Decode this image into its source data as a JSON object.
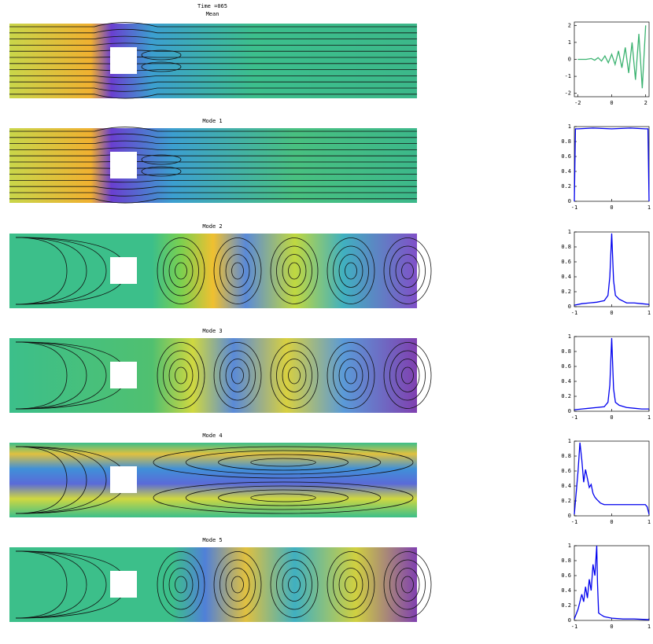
{
  "header": {
    "time": "Time =065"
  },
  "field_titles": [
    "Mean",
    "Mode 1",
    "Mode 2",
    "Mode 3",
    "Mode 4",
    "Mode 5"
  ],
  "chart_data": [
    {
      "type": "line",
      "xlim": [
        -2.2,
        2.2
      ],
      "xticks": [
        -2,
        0,
        2
      ],
      "ylim": [
        -2.2,
        2.2
      ],
      "yticks": [
        -2,
        -1,
        0,
        1,
        2
      ],
      "series": [
        {
          "color": "#3cb371",
          "x": [
            -2,
            -1.5,
            -1.2,
            -1,
            -0.8,
            -0.6,
            -0.4,
            -0.2,
            0,
            0.2,
            0.4,
            0.6,
            0.8,
            1,
            1.2,
            1.4,
            1.6,
            1.8,
            2
          ],
          "values": [
            0,
            0,
            0.05,
            -0.05,
            0.1,
            -0.1,
            0.2,
            -0.2,
            0.3,
            -0.3,
            0.5,
            -0.5,
            0.7,
            -0.8,
            1.0,
            -1.2,
            1.5,
            -1.7,
            2.0
          ]
        }
      ]
    },
    {
      "type": "line",
      "xlim": [
        -1,
        1
      ],
      "xticks": [
        -1,
        0,
        1
      ],
      "ylim": [
        0,
        1
      ],
      "yticks": [
        0,
        0.2,
        0.4,
        0.6,
        0.8,
        1
      ],
      "series": [
        {
          "color": "#0000ee",
          "x": [
            -1,
            -0.97,
            -0.9,
            -0.5,
            0,
            0.5,
            0.9,
            0.97,
            1
          ],
          "values": [
            0,
            0.97,
            0.97,
            0.98,
            0.97,
            0.98,
            0.97,
            0.97,
            0
          ]
        }
      ]
    },
    {
      "type": "line",
      "xlim": [
        -1,
        1
      ],
      "xticks": [
        -1,
        0,
        1
      ],
      "ylim": [
        0,
        1
      ],
      "yticks": [
        0,
        0.2,
        0.4,
        0.6,
        0.8,
        1
      ],
      "series": [
        {
          "color": "#0000ee",
          "x": [
            -1,
            -0.8,
            -0.6,
            -0.4,
            -0.2,
            -0.1,
            -0.05,
            0,
            0.05,
            0.1,
            0.2,
            0.4,
            0.6,
            0.8,
            1
          ],
          "values": [
            0.02,
            0.04,
            0.05,
            0.06,
            0.08,
            0.15,
            0.4,
            0.98,
            0.35,
            0.15,
            0.1,
            0.05,
            0.05,
            0.04,
            0.03
          ]
        }
      ]
    },
    {
      "type": "line",
      "xlim": [
        -1,
        1
      ],
      "xticks": [
        -1,
        0,
        1
      ],
      "ylim": [
        0,
        1
      ],
      "yticks": [
        0,
        0.2,
        0.4,
        0.6,
        0.8,
        1
      ],
      "series": [
        {
          "color": "#0000ee",
          "x": [
            -1,
            -0.8,
            -0.6,
            -0.4,
            -0.2,
            -0.1,
            -0.05,
            0,
            0.05,
            0.1,
            0.2,
            0.4,
            0.6,
            0.8,
            1
          ],
          "values": [
            0.02,
            0.03,
            0.04,
            0.05,
            0.06,
            0.12,
            0.35,
            0.98,
            0.3,
            0.12,
            0.08,
            0.05,
            0.04,
            0.03,
            0.03
          ]
        }
      ]
    },
    {
      "type": "line",
      "xlim": [
        -1,
        1
      ],
      "xticks": [
        -1,
        0,
        1
      ],
      "ylim": [
        0,
        1
      ],
      "yticks": [
        0,
        0.2,
        0.4,
        0.6,
        0.8,
        1
      ],
      "series": [
        {
          "color": "#0000ee",
          "x": [
            -1,
            -0.9,
            -0.85,
            -0.8,
            -0.75,
            -0.7,
            -0.65,
            -0.6,
            -0.55,
            -0.5,
            -0.45,
            -0.4,
            -0.3,
            -0.2,
            0,
            0.3,
            0.6,
            0.9,
            0.95,
            1
          ],
          "values": [
            0.02,
            0.6,
            0.98,
            0.75,
            0.45,
            0.62,
            0.5,
            0.38,
            0.42,
            0.3,
            0.25,
            0.22,
            0.17,
            0.15,
            0.15,
            0.15,
            0.15,
            0.15,
            0.12,
            0.02
          ]
        }
      ]
    },
    {
      "type": "line",
      "xlim": [
        -1,
        1
      ],
      "xticks": [
        -1,
        0,
        1
      ],
      "ylim": [
        0,
        1
      ],
      "yticks": [
        0,
        0.2,
        0.4,
        0.6,
        0.8,
        1
      ],
      "series": [
        {
          "color": "#0000ee",
          "x": [
            -1,
            -0.9,
            -0.8,
            -0.75,
            -0.7,
            -0.65,
            -0.6,
            -0.55,
            -0.5,
            -0.45,
            -0.4,
            -0.38,
            -0.35,
            -0.3,
            -0.2,
            0,
            0.3,
            0.6,
            1
          ],
          "values": [
            0.02,
            0.15,
            0.35,
            0.25,
            0.45,
            0.3,
            0.55,
            0.4,
            0.75,
            0.6,
            1.0,
            0.5,
            0.1,
            0.08,
            0.05,
            0.03,
            0.02,
            0.02,
            0.01
          ]
        }
      ]
    }
  ]
}
